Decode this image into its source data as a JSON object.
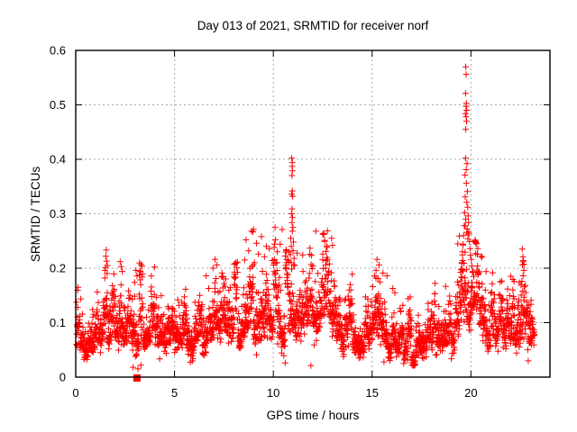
{
  "title": "Day 013 of 2021, SRMTID for receiver norf",
  "xlabel": "GPS time / hours",
  "ylabel": "SRMTID / TECUs",
  "colors": {
    "points": "#ff0000",
    "grid": "#a8a8a8",
    "axis": "#000000",
    "background": "#ffffff",
    "text": "#000000"
  },
  "chart_data": {
    "type": "scatter",
    "marker": "plus",
    "marker_size_px": 7,
    "title": "Day 013 of 2021, SRMTID for receiver norf",
    "xlabel": "GPS time / hours",
    "ylabel": "SRMTID / TECUs",
    "xlim": [
      0,
      24
    ],
    "ylim": [
      0,
      0.6
    ],
    "xticks": [
      0,
      5,
      10,
      15,
      20
    ],
    "yticks": [
      0,
      0.1,
      0.2,
      0.3,
      0.4,
      0.5,
      0.6
    ],
    "grid": true,
    "grid_style": "dashed",
    "legend": "none",
    "square_point": [
      3.1,
      0.0
    ],
    "band_model": {
      "description": "Dense band of 30-second SRMTID samples; median envelope in TECUs vs GPS hour, lognormal scatter around it, columnar pass-clusters",
      "seed": 1302021,
      "x_start": 0.03,
      "x_end": 23.22,
      "sample_interval_hours": 0.008333,
      "cluster_width_hours": 0.2,
      "cluster_sigma": 0.22,
      "point_sigma": 0.24,
      "y_min": 0.013,
      "y_cap_abs": 0.34,
      "y_cap_rel": 2.3,
      "envelope": [
        [
          0,
          0.07
        ],
        [
          0.3,
          0.068
        ],
        [
          0.7,
          0.066
        ],
        [
          1.0,
          0.072
        ],
        [
          1.3,
          0.085
        ],
        [
          1.6,
          0.105
        ],
        [
          1.9,
          0.115
        ],
        [
          2.2,
          0.105
        ],
        [
          2.5,
          0.092
        ],
        [
          2.8,
          0.085
        ],
        [
          3.0,
          0.095
        ],
        [
          3.3,
          0.09
        ],
        [
          3.6,
          0.082
        ],
        [
          4.0,
          0.088
        ],
        [
          4.4,
          0.08
        ],
        [
          4.8,
          0.078
        ],
        [
          5.2,
          0.072
        ],
        [
          5.6,
          0.07
        ],
        [
          6.0,
          0.08
        ],
        [
          6.4,
          0.09
        ],
        [
          6.8,
          0.1
        ],
        [
          7.1,
          0.108
        ],
        [
          7.4,
          0.098
        ],
        [
          7.8,
          0.088
        ],
        [
          8.2,
          0.092
        ],
        [
          8.6,
          0.11
        ],
        [
          9.0,
          0.118
        ],
        [
          9.4,
          0.122
        ],
        [
          9.8,
          0.118
        ],
        [
          10.2,
          0.12
        ],
        [
          10.6,
          0.128
        ],
        [
          11.0,
          0.15
        ],
        [
          11.3,
          0.12
        ],
        [
          11.6,
          0.108
        ],
        [
          12.0,
          0.1
        ],
        [
          12.4,
          0.112
        ],
        [
          12.7,
          0.118
        ],
        [
          13.0,
          0.108
        ],
        [
          13.3,
          0.102
        ],
        [
          13.6,
          0.095
        ],
        [
          14.0,
          0.082
        ],
        [
          14.4,
          0.068
        ],
        [
          14.8,
          0.062
        ],
        [
          15.1,
          0.08
        ],
        [
          15.4,
          0.095
        ],
        [
          15.7,
          0.088
        ],
        [
          16.0,
          0.075
        ],
        [
          16.4,
          0.068
        ],
        [
          16.8,
          0.065
        ],
        [
          17.2,
          0.062
        ],
        [
          17.6,
          0.065
        ],
        [
          18.0,
          0.072
        ],
        [
          18.4,
          0.078
        ],
        [
          18.8,
          0.082
        ],
        [
          19.2,
          0.095
        ],
        [
          19.5,
          0.12
        ],
        [
          19.7,
          0.16
        ],
        [
          19.9,
          0.15
        ],
        [
          20.1,
          0.115
        ],
        [
          20.4,
          0.1
        ],
        [
          20.7,
          0.092
        ],
        [
          21.0,
          0.085
        ],
        [
          21.4,
          0.078
        ],
        [
          21.8,
          0.075
        ],
        [
          22.2,
          0.085
        ],
        [
          22.5,
          0.1
        ],
        [
          22.7,
          0.105
        ],
        [
          23.0,
          0.09
        ],
        [
          23.22,
          0.085
        ]
      ]
    },
    "outliers": [
      [
        10.93,
        0.402
      ],
      [
        10.96,
        0.394
      ],
      [
        10.95,
        0.387
      ],
      [
        10.97,
        0.379
      ],
      [
        10.94,
        0.37
      ],
      [
        10.96,
        0.342
      ],
      [
        10.93,
        0.336
      ],
      [
        10.98,
        0.332
      ],
      [
        10.95,
        0.309
      ],
      [
        10.92,
        0.3
      ],
      [
        10.97,
        0.293
      ],
      [
        10.94,
        0.284
      ],
      [
        10.99,
        0.275
      ],
      [
        10.96,
        0.268
      ],
      [
        10.45,
        0.271
      ],
      [
        10.88,
        0.255
      ],
      [
        11.02,
        0.248
      ],
      [
        10.91,
        0.24
      ],
      [
        11.0,
        0.232
      ],
      [
        10.86,
        0.225
      ],
      [
        11.05,
        0.218
      ],
      [
        10.9,
        0.21
      ],
      [
        11.08,
        0.205
      ],
      [
        19.74,
        0.57
      ],
      [
        19.76,
        0.556
      ],
      [
        19.73,
        0.521
      ],
      [
        19.77,
        0.503
      ],
      [
        19.75,
        0.497
      ],
      [
        19.79,
        0.49
      ],
      [
        19.72,
        0.484
      ],
      [
        19.76,
        0.478
      ],
      [
        19.78,
        0.47
      ],
      [
        19.74,
        0.455
      ],
      [
        19.73,
        0.402
      ],
      [
        19.8,
        0.392
      ],
      [
        19.76,
        0.381
      ],
      [
        19.7,
        0.371
      ],
      [
        19.77,
        0.356
      ],
      [
        19.82,
        0.341
      ],
      [
        19.71,
        0.331
      ],
      [
        19.79,
        0.321
      ],
      [
        19.84,
        0.312
      ],
      [
        19.68,
        0.302
      ],
      [
        19.86,
        0.296
      ],
      [
        19.74,
        0.29
      ],
      [
        19.88,
        0.284
      ],
      [
        19.66,
        0.278
      ],
      [
        19.81,
        0.272
      ],
      [
        19.9,
        0.266
      ],
      [
        19.63,
        0.26
      ],
      [
        19.85,
        0.254
      ],
      [
        19.93,
        0.249
      ],
      [
        19.6,
        0.244
      ],
      [
        19.95,
        0.236
      ],
      [
        19.57,
        0.23
      ],
      [
        19.98,
        0.224
      ],
      [
        20.02,
        0.216
      ],
      [
        19.54,
        0.21
      ],
      [
        20.05,
        0.204
      ],
      [
        19.5,
        0.198
      ],
      [
        20.08,
        0.192
      ],
      [
        22.6,
        0.235
      ],
      [
        22.63,
        0.221
      ],
      [
        22.66,
        0.214
      ],
      [
        22.61,
        0.206
      ],
      [
        22.68,
        0.196
      ],
      [
        22.64,
        0.186
      ],
      [
        22.58,
        0.176
      ],
      [
        22.7,
        0.166
      ],
      [
        22.62,
        0.158
      ],
      [
        8.62,
        0.252
      ],
      [
        8.9,
        0.268
      ],
      [
        9.15,
        0.246
      ],
      [
        9.4,
        0.258
      ],
      [
        9.65,
        0.24
      ],
      [
        10.1,
        0.252
      ],
      [
        10.35,
        0.244
      ],
      [
        8.75,
        0.232
      ],
      [
        9.25,
        0.226
      ],
      [
        9.8,
        0.236
      ],
      [
        10.2,
        0.23
      ],
      [
        9.55,
        0.221
      ],
      [
        8.55,
        0.215
      ],
      [
        9.05,
        0.21
      ],
      [
        9.95,
        0.214
      ],
      [
        12.15,
        0.268
      ],
      [
        12.55,
        0.262
      ],
      [
        12.6,
        0.251
      ],
      [
        12.7,
        0.241
      ],
      [
        12.5,
        0.226
      ],
      [
        12.75,
        0.216
      ],
      [
        12.65,
        0.206
      ],
      [
        12.95,
        0.255
      ],
      [
        13.0,
        0.242
      ],
      [
        1.52,
        0.222
      ],
      [
        1.56,
        0.213
      ],
      [
        1.6,
        0.205
      ],
      [
        1.48,
        0.196
      ],
      [
        2.25,
        0.212
      ],
      [
        2.3,
        0.203
      ],
      [
        2.35,
        0.194
      ],
      [
        0.12,
        0.165
      ],
      [
        0.1,
        0.128
      ],
      [
        3.05,
        0.196
      ],
      [
        3.1,
        0.186
      ],
      [
        7.05,
        0.216
      ],
      [
        7.15,
        0.206
      ],
      [
        6.95,
        0.2
      ],
      [
        6.6,
        0.186
      ],
      [
        7.4,
        0.191
      ],
      [
        7.1,
        0.181
      ],
      [
        15.25,
        0.216
      ],
      [
        15.35,
        0.206
      ],
      [
        15.2,
        0.196
      ],
      [
        15.55,
        0.191
      ],
      [
        15.75,
        0.186
      ],
      [
        15.3,
        0.181
      ],
      [
        2.9,
        0.018
      ],
      [
        3.3,
        0.022
      ],
      [
        10.6,
        0.026
      ],
      [
        15.6,
        0.028
      ],
      [
        11.9,
        0.021
      ],
      [
        22.9,
        0.03
      ],
      [
        5.9,
        0.03
      ],
      [
        16.6,
        0.025
      ],
      [
        3.15,
        0.015
      ]
    ]
  }
}
